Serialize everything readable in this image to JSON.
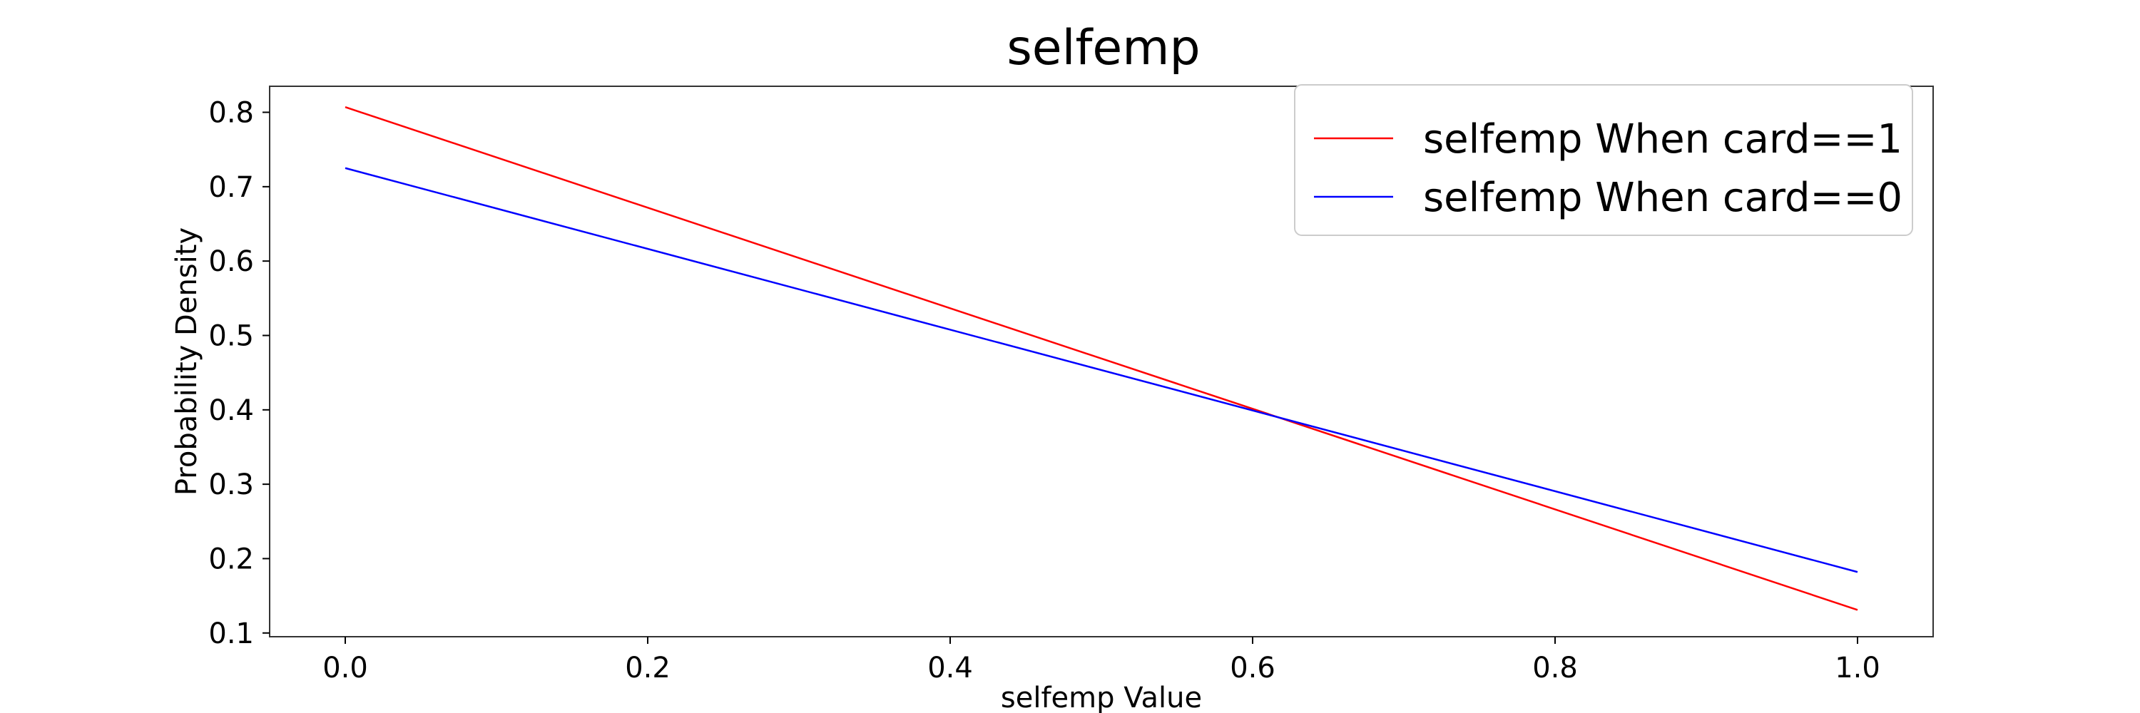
{
  "chart_data": {
    "type": "line",
    "title": "selfemp",
    "xlabel": "selfemp Value",
    "ylabel": "Probability Density",
    "xlim": [
      -0.05,
      1.05
    ],
    "ylim": [
      0.095,
      0.835
    ],
    "xticks": [
      0.0,
      0.2,
      0.4,
      0.6,
      0.8,
      1.0
    ],
    "xtick_labels": [
      "0.0",
      "0.2",
      "0.4",
      "0.6",
      "0.8",
      "1.0"
    ],
    "yticks": [
      0.1,
      0.2,
      0.3,
      0.4,
      0.5,
      0.6,
      0.7,
      0.8
    ],
    "ytick_labels": [
      "0.1",
      "0.2",
      "0.3",
      "0.4",
      "0.5",
      "0.6",
      "0.7",
      "0.8"
    ],
    "grid": false,
    "legend_position": "top-right",
    "series": [
      {
        "name": "selfemp When card==1",
        "color": "#ff0000",
        "x": [
          0.0,
          1.0
        ],
        "y": [
          0.807,
          0.131
        ]
      },
      {
        "name": "selfemp When card==0",
        "color": "#0000ff",
        "x": [
          0.0,
          1.0
        ],
        "y": [
          0.725,
          0.182
        ]
      }
    ]
  }
}
